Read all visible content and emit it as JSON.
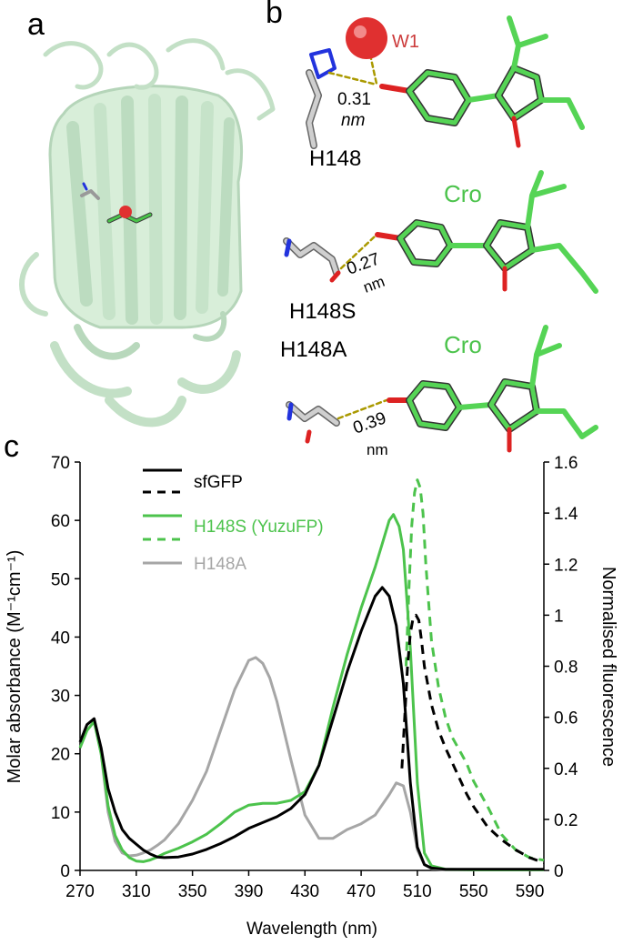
{
  "panels": {
    "a": {
      "label": "a"
    },
    "b": {
      "label": "b",
      "labels": {
        "w1": "W1",
        "h148": "H148",
        "h148s": "H148S",
        "h148a": "H148A",
        "cro1": "Cro",
        "cro2": "Cro",
        "dist1_value": "0.31",
        "dist1_unit": "nm",
        "dist2_value": "0.27",
        "dist2_unit": "nm",
        "dist3_value": "0.39",
        "dist3_unit": "nm"
      }
    },
    "c": {
      "label": "c"
    }
  },
  "colors": {
    "sfgfp": "#000000",
    "h148s": "#4cc34c",
    "h148a": "#a6a6a6",
    "protein": "#cfe8d2",
    "carbon_green": "#55d455",
    "water": "#e03030",
    "nitrogen": "#2233dd",
    "oxygen": "#dd2222"
  },
  "chart_data": {
    "type": "line",
    "xlabel": "Wavelength (nm)",
    "ylabel_left": "Molar absorbance (M⁻¹cm⁻¹)",
    "ylabel_right": "Normalised fluorescence",
    "xlim": [
      270,
      600
    ],
    "ylim_left": [
      0,
      70
    ],
    "ylim_right": [
      0,
      1.6
    ],
    "x_ticks": [
      "270",
      "310",
      "350",
      "390",
      "430",
      "470",
      "510",
      "550",
      "590"
    ],
    "y_ticks_left": [
      "0",
      "10",
      "20",
      "30",
      "40",
      "50",
      "60",
      "70"
    ],
    "y_ticks_right": [
      "0",
      "0.2",
      "0.4",
      "0.6",
      "0.8",
      "1",
      "1.2",
      "1.4",
      "1.6"
    ],
    "legend": {
      "position": "top-left",
      "entries": [
        {
          "name": "sfGFP",
          "color": "#000000",
          "styles": [
            "solid",
            "dashed"
          ]
        },
        {
          "name": "H148S (YuzuFP)",
          "color": "#4cc34c",
          "styles": [
            "solid",
            "dashed"
          ]
        },
        {
          "name": "H148A",
          "color": "#a6a6a6",
          "styles": [
            "solid"
          ]
        }
      ]
    },
    "series": [
      {
        "key": "sfgfp_abs",
        "axis": "left",
        "color": "#000000",
        "dash": false,
        "x": [
          270,
          275,
          280,
          285,
          290,
          295,
          300,
          305,
          310,
          315,
          320,
          325,
          330,
          340,
          350,
          360,
          370,
          380,
          390,
          400,
          410,
          420,
          430,
          440,
          450,
          460,
          470,
          480,
          485,
          490,
          495,
          500,
          505,
          510,
          515,
          520,
          530,
          540,
          560,
          580,
          600
        ],
        "y": [
          22,
          25,
          26,
          21,
          14,
          10,
          7,
          5.5,
          4.5,
          3.5,
          2.8,
          2.3,
          2.2,
          2.3,
          2.8,
          3.6,
          4.6,
          5.8,
          7.2,
          8.2,
          9.2,
          10.6,
          13,
          18,
          26,
          34,
          41,
          47,
          48.5,
          47,
          42,
          32,
          15,
          4,
          1,
          0.4,
          0.2,
          0.2,
          0.2,
          0.2,
          0.2
        ]
      },
      {
        "key": "h148s_abs",
        "axis": "left",
        "color": "#4cc34c",
        "dash": false,
        "x": [
          270,
          275,
          280,
          285,
          290,
          295,
          300,
          305,
          310,
          315,
          320,
          325,
          330,
          340,
          350,
          360,
          370,
          380,
          390,
          400,
          410,
          420,
          430,
          440,
          450,
          460,
          470,
          480,
          485,
          490,
          493,
          497,
          500,
          505,
          510,
          515,
          520,
          530,
          550,
          600
        ],
        "y": [
          21,
          24,
          25.5,
          20,
          11,
          6,
          3.5,
          2.2,
          1.6,
          1.5,
          1.8,
          2.3,
          2.9,
          3.8,
          4.9,
          6.2,
          8,
          10,
          11.2,
          11.5,
          11.5,
          12,
          13.5,
          18,
          28,
          37,
          45,
          52,
          56,
          60,
          61,
          59,
          55,
          38,
          15,
          3,
          0.8,
          0.2,
          0.1,
          0.1
        ]
      },
      {
        "key": "h148a_abs",
        "axis": "left",
        "color": "#a6a6a6",
        "dash": false,
        "x": [
          270,
          275,
          280,
          285,
          290,
          295,
          300,
          305,
          310,
          315,
          320,
          325,
          330,
          340,
          350,
          360,
          370,
          380,
          390,
          395,
          400,
          405,
          410,
          420,
          430,
          440,
          450,
          460,
          470,
          480,
          490,
          495,
          500,
          505,
          510,
          515,
          520,
          530,
          600
        ],
        "y": [
          22,
          25,
          26,
          20,
          10,
          5,
          3,
          2.5,
          2.6,
          3,
          3.5,
          4.3,
          5.2,
          8,
          12,
          17,
          24,
          31,
          36,
          36.5,
          35.5,
          33,
          29,
          19,
          9.5,
          5.5,
          5.5,
          7,
          8,
          9.5,
          13,
          15,
          14.5,
          10,
          3.5,
          1,
          0.3,
          0.1,
          0.1
        ]
      },
      {
        "key": "sfgfp_fl",
        "axis": "right",
        "color": "#000000",
        "dash": true,
        "x": [
          499,
          501,
          503,
          505,
          507,
          509,
          511,
          513,
          515,
          520,
          525,
          530,
          535,
          540,
          545,
          550,
          560,
          570,
          580,
          590,
          600
        ],
        "y": [
          0.4,
          0.6,
          0.8,
          0.93,
          0.99,
          1.0,
          0.98,
          0.9,
          0.8,
          0.65,
          0.55,
          0.48,
          0.42,
          0.36,
          0.3,
          0.25,
          0.17,
          0.12,
          0.08,
          0.05,
          0.03
        ]
      },
      {
        "key": "h148s_fl",
        "axis": "right",
        "color": "#4cc34c",
        "dash": true,
        "x": [
          502,
          504,
          506,
          508,
          510,
          512,
          514,
          516,
          520,
          525,
          530,
          535,
          540,
          545,
          550,
          560,
          570,
          580,
          590,
          600
        ],
        "y": [
          0.8,
          1.1,
          1.35,
          1.48,
          1.53,
          1.5,
          1.4,
          1.2,
          0.9,
          0.72,
          0.6,
          0.52,
          0.47,
          0.42,
          0.35,
          0.25,
          0.14,
          0.08,
          0.05,
          0.04
        ]
      }
    ]
  }
}
